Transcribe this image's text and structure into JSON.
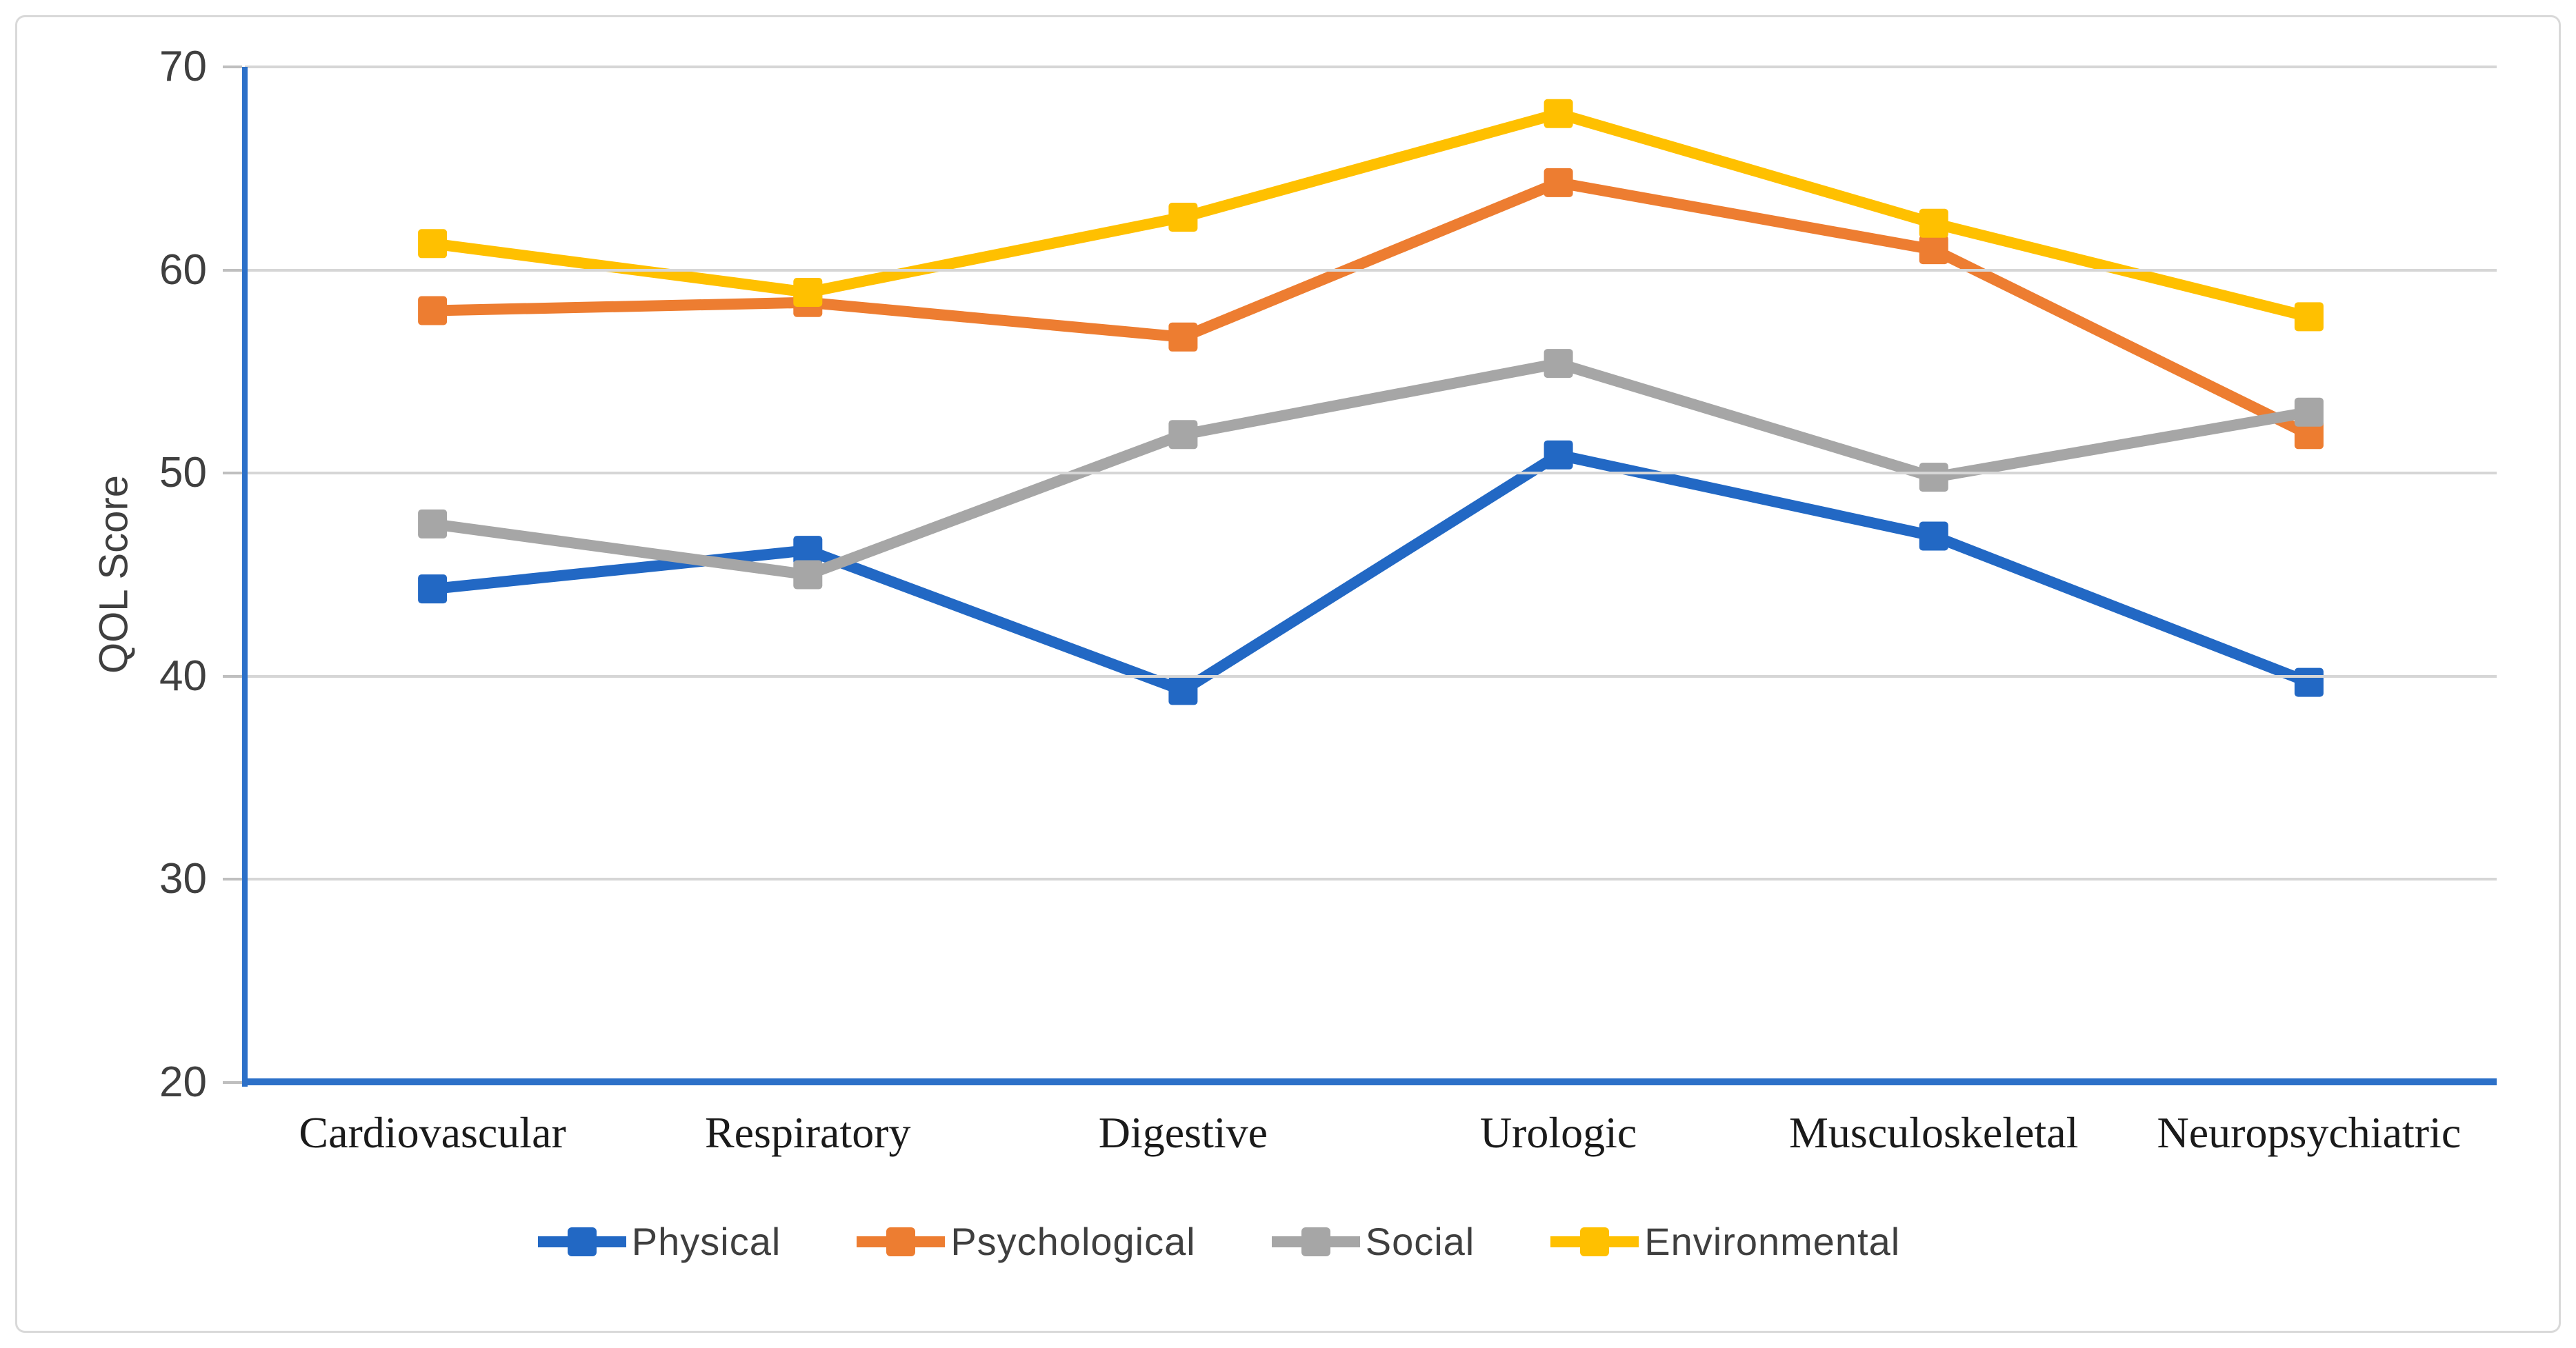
{
  "chart_data": {
    "type": "line",
    "title": "",
    "xlabel": "",
    "ylabel": "QOL Score",
    "categories": [
      "Cardiovascular",
      "Respiratory",
      "Digestive",
      "Urologic",
      "Musculoskeletal",
      "Neuropsychiatric"
    ],
    "series": [
      {
        "name": "Physical",
        "color": "#2268c4",
        "values": [
          44.3,
          46.2,
          39.3,
          50.9,
          46.9,
          39.7
        ]
      },
      {
        "name": "Psychological",
        "color": "#ed7d31",
        "values": [
          58.0,
          58.4,
          56.7,
          64.3,
          61.0,
          51.9
        ]
      },
      {
        "name": "Social",
        "color": "#a6a6a6",
        "values": [
          47.5,
          45.0,
          51.9,
          55.4,
          49.8,
          53.0
        ]
      },
      {
        "name": "Environmental",
        "color": "#ffc000",
        "values": [
          61.3,
          58.9,
          62.6,
          67.7,
          62.3,
          57.7
        ]
      }
    ],
    "ylim": [
      20,
      70
    ],
    "yticks": [
      70,
      60,
      50,
      40,
      30,
      20
    ],
    "grid": true,
    "legend_position": "bottom",
    "marker": "square"
  },
  "colors": {
    "axis_line": "#2c70c8",
    "gridline": "#d6d6d6",
    "tick_mark": "#bfbfbf",
    "tick_label": "#3f3f3f",
    "category_label": "#1a1a1a",
    "legend_label": "#3f3f3f",
    "figure_border": "#d9d9d9",
    "background": "#ffffff"
  }
}
